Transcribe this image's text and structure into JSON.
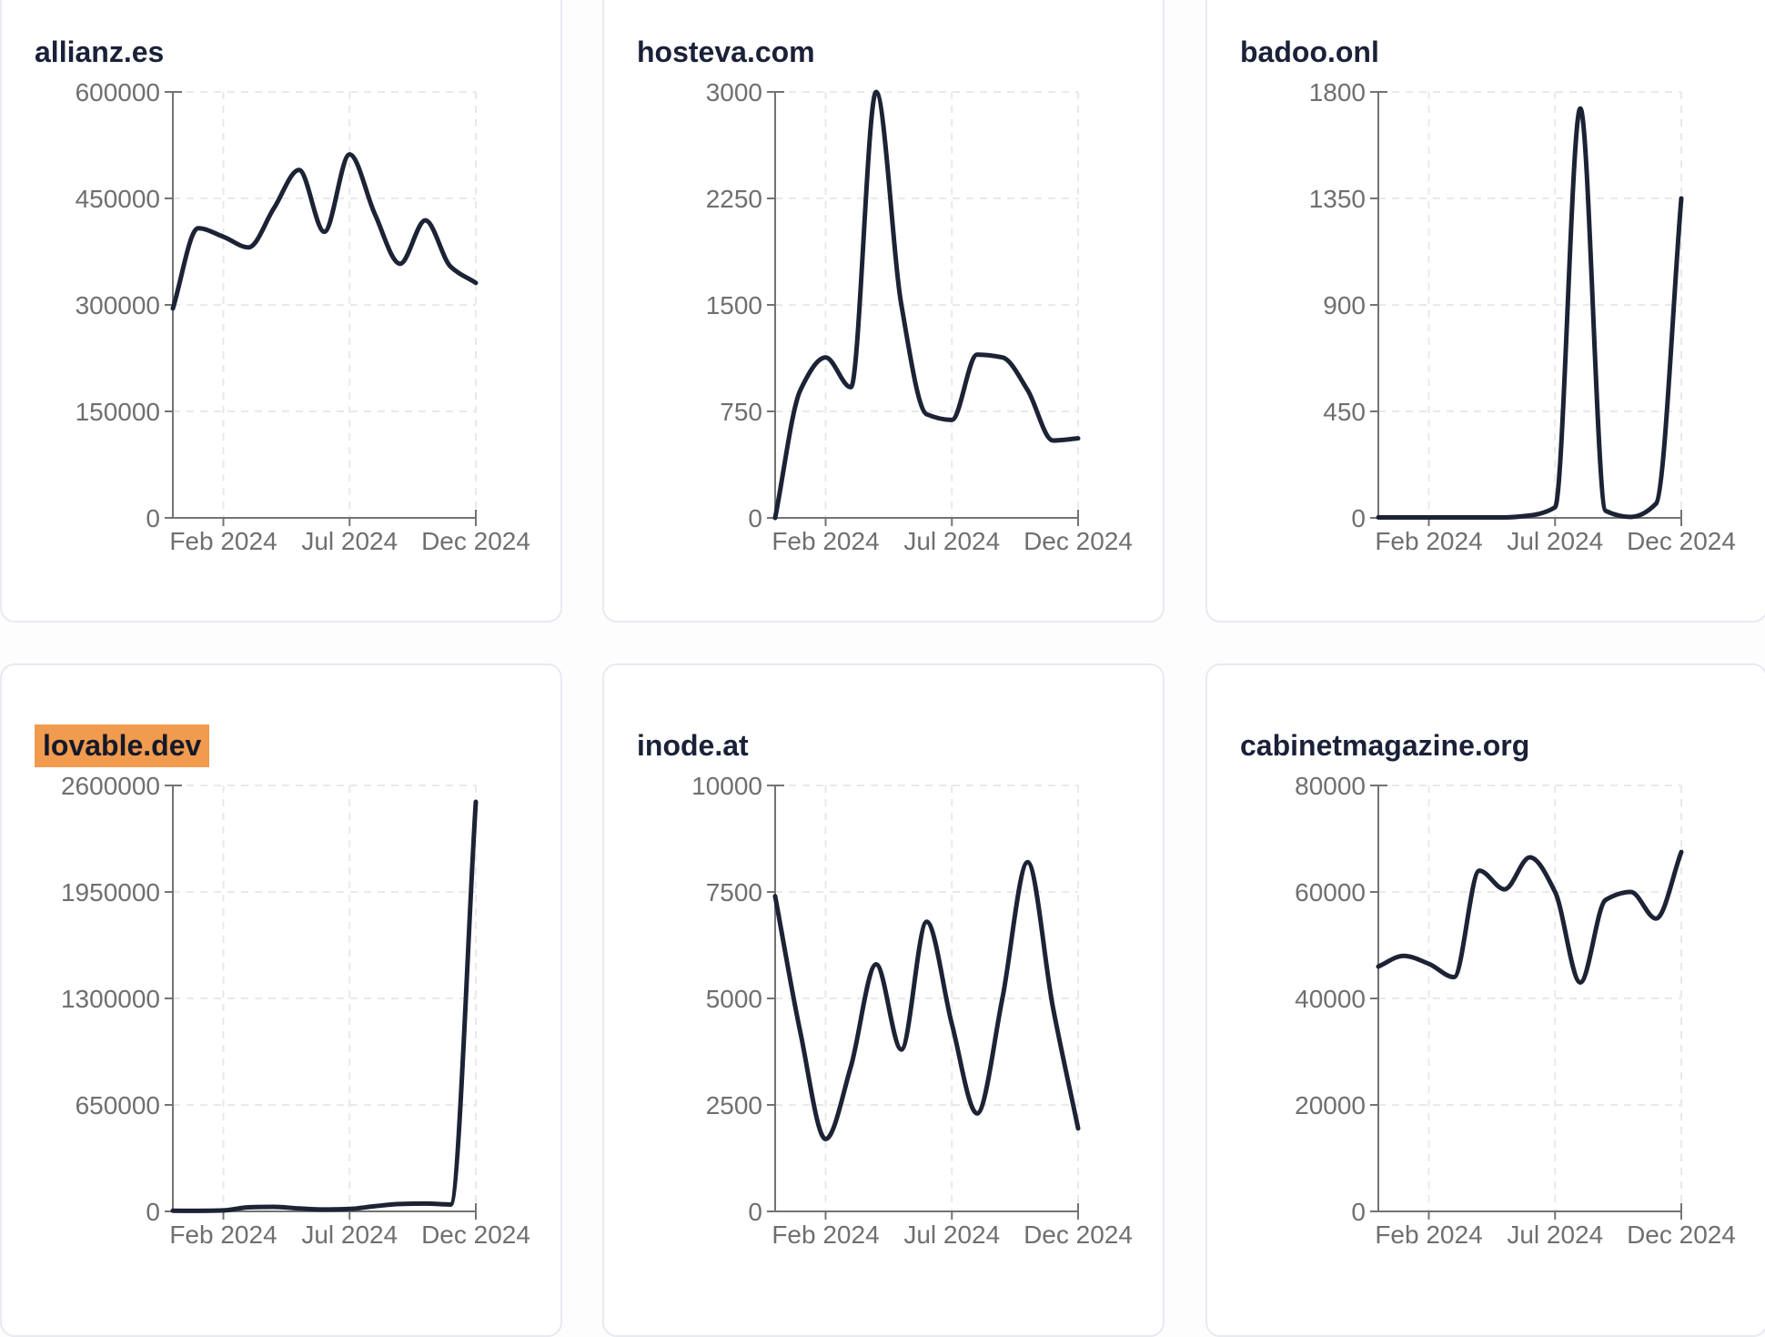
{
  "page": {
    "background": "#fdfdfe",
    "card_background": "#ffffff",
    "card_border_color": "#e8eaf0",
    "title_color": "#1a2138",
    "highlight_color": "#f19b4e",
    "highlight_text_color": "#14192b",
    "line_color": "#1c2335",
    "axis_color": "#737373",
    "tick_label_color": "#6f6f6f",
    "grid_color": "#e9e9e9"
  },
  "chart_data": [
    {
      "type": "line",
      "title": "allianz.es",
      "title_highlighted": false,
      "x": [
        "Dec 2023",
        "Jan 2024",
        "Feb 2024",
        "Mar 2024",
        "Apr 2024",
        "May 2024",
        "Jun 2024",
        "Jul 2024",
        "Aug 2024",
        "Sep 2024",
        "Oct 2024",
        "Nov 2024",
        "Dec 2024"
      ],
      "values": [
        295000,
        408000,
        396000,
        381000,
        436000,
        490000,
        403000,
        512000,
        428000,
        358000,
        419000,
        354000,
        331000
      ],
      "y_ticks": [
        0,
        150000,
        300000,
        450000,
        600000
      ],
      "ylim": [
        0,
        600000
      ],
      "x_tick_labels": [
        "Feb 2024",
        "Jul 2024",
        "Dec 2024"
      ],
      "x_tick_indices": [
        2,
        7,
        12
      ],
      "grid": "dashed",
      "legend": false
    },
    {
      "type": "line",
      "title": "hosteva.com",
      "title_highlighted": false,
      "x": [
        "Dec 2023",
        "Jan 2024",
        "Feb 2024",
        "Mar 2024",
        "Apr 2024",
        "May 2024",
        "Jun 2024",
        "Jul 2024",
        "Aug 2024",
        "Sep 2024",
        "Oct 2024",
        "Nov 2024",
        "Dec 2024"
      ],
      "values": [
        0,
        900,
        1130,
        920,
        3000,
        1500,
        730,
        690,
        1150,
        1130,
        900,
        545,
        560
      ],
      "y_ticks": [
        0,
        750,
        1500,
        2250,
        3000
      ],
      "ylim": [
        0,
        3000
      ],
      "x_tick_labels": [
        "Feb 2024",
        "Jul 2024",
        "Dec 2024"
      ],
      "x_tick_indices": [
        2,
        7,
        12
      ],
      "grid": "dashed",
      "legend": false
    },
    {
      "type": "line",
      "title": "badoo.onl",
      "title_highlighted": false,
      "x": [
        "Dec 2023",
        "Jan 2024",
        "Feb 2024",
        "Mar 2024",
        "Apr 2024",
        "May 2024",
        "Jun 2024",
        "Jul 2024",
        "Aug 2024",
        "Sep 2024",
        "Oct 2024",
        "Nov 2024",
        "Dec 2024"
      ],
      "values": [
        2,
        2,
        2,
        2,
        2,
        2,
        10,
        45,
        1730,
        30,
        4,
        60,
        1350
      ],
      "y_ticks": [
        0,
        450,
        900,
        1350,
        1800
      ],
      "ylim": [
        0,
        1800
      ],
      "x_tick_labels": [
        "Feb 2024",
        "Jul 2024",
        "Dec 2024"
      ],
      "x_tick_indices": [
        2,
        7,
        12
      ],
      "grid": "dashed",
      "legend": false
    },
    {
      "type": "line",
      "title": "lovable.dev",
      "title_highlighted": true,
      "x": [
        "Dec 2023",
        "Jan 2024",
        "Feb 2024",
        "Mar 2024",
        "Apr 2024",
        "May 2024",
        "Jun 2024",
        "Jul 2024",
        "Aug 2024",
        "Sep 2024",
        "Oct 2024",
        "Nov 2024",
        "Dec 2024"
      ],
      "values": [
        4000,
        3500,
        6000,
        25000,
        28000,
        18000,
        12000,
        15000,
        32000,
        45000,
        48000,
        42000,
        2500000
      ],
      "y_ticks": [
        0,
        650000,
        1300000,
        1950000,
        2600000
      ],
      "ylim": [
        0,
        2600000
      ],
      "x_tick_labels": [
        "Feb 2024",
        "Jul 2024",
        "Dec 2024"
      ],
      "x_tick_indices": [
        2,
        7,
        12
      ],
      "grid": "dashed",
      "legend": false
    },
    {
      "type": "line",
      "title": "inode.at",
      "title_highlighted": false,
      "x": [
        "Dec 2023",
        "Jan 2024",
        "Feb 2024",
        "Mar 2024",
        "Apr 2024",
        "May 2024",
        "Jun 2024",
        "Jul 2024",
        "Aug 2024",
        "Sep 2024",
        "Oct 2024",
        "Nov 2024",
        "Dec 2024"
      ],
      "values": [
        7400,
        4200,
        1700,
        3400,
        5800,
        3800,
        6800,
        4400,
        2300,
        5000,
        8200,
        4800,
        1950
      ],
      "y_ticks": [
        0,
        2500,
        5000,
        7500,
        10000
      ],
      "ylim": [
        0,
        10000
      ],
      "x_tick_labels": [
        "Feb 2024",
        "Jul 2024",
        "Dec 2024"
      ],
      "x_tick_indices": [
        2,
        7,
        12
      ],
      "grid": "dashed",
      "legend": false
    },
    {
      "type": "line",
      "title": "cabinetmagazine.org",
      "title_highlighted": false,
      "x": [
        "Dec 2023",
        "Jan 2024",
        "Feb 2024",
        "Mar 2024",
        "Apr 2024",
        "May 2024",
        "Jun 2024",
        "Jul 2024",
        "Aug 2024",
        "Sep 2024",
        "Oct 2024",
        "Nov 2024",
        "Dec 2024"
      ],
      "values": [
        46000,
        48000,
        46500,
        44000,
        64000,
        60500,
        66500,
        60000,
        43000,
        58500,
        60000,
        55000,
        67500
      ],
      "y_ticks": [
        0,
        20000,
        40000,
        60000,
        80000
      ],
      "ylim": [
        0,
        80000
      ],
      "x_tick_labels": [
        "Feb 2024",
        "Jul 2024",
        "Dec 2024"
      ],
      "x_tick_indices": [
        2,
        7,
        12
      ],
      "grid": "dashed",
      "legend": false
    }
  ]
}
